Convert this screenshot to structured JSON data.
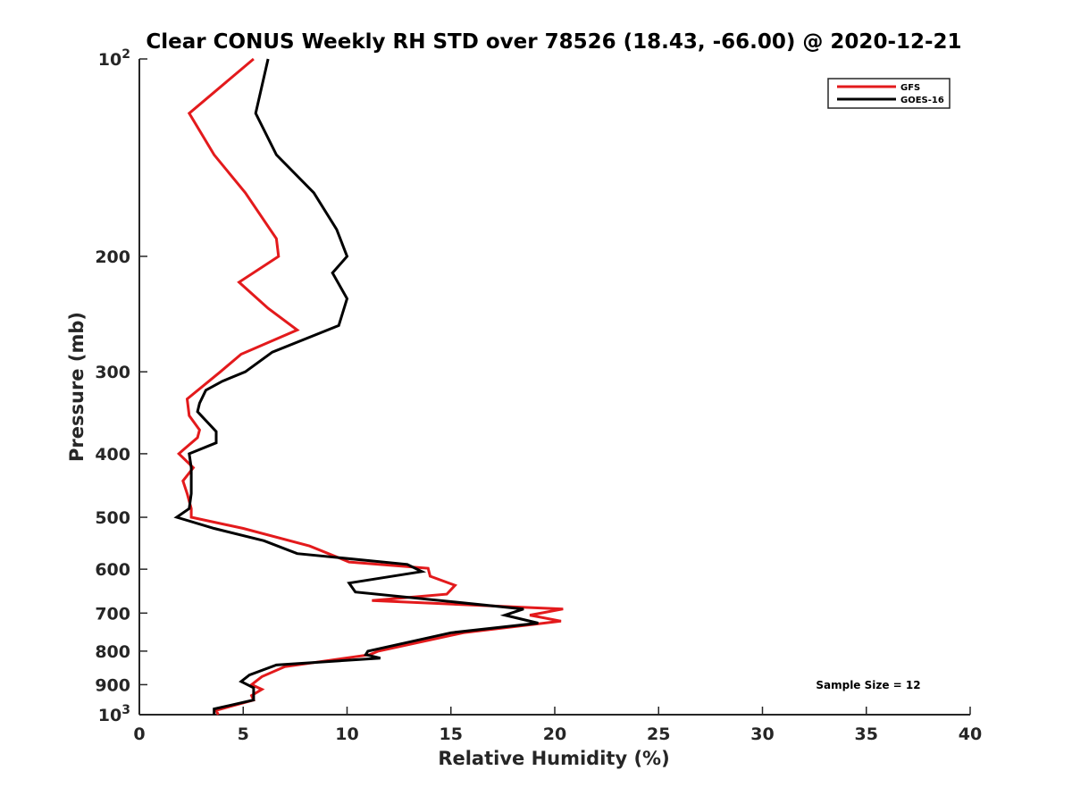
{
  "chart_data": {
    "type": "line",
    "title": "Clear CONUS Weekly RH STD over 78526 (18.43, -66.00) @ 2020-12-21",
    "xlabel": "Relative Humidity (%)",
    "ylabel": "Pressure (mb)",
    "xlim": [
      0,
      40
    ],
    "ylim": [
      100,
      1000
    ],
    "y_scale": "log",
    "y_reversed": true,
    "x_ticks": [
      "0",
      "5",
      "10",
      "15",
      "20",
      "25",
      "30",
      "35",
      "40"
    ],
    "y_ticks": [
      {
        "value": 100,
        "label": "10",
        "sup": "2"
      },
      {
        "value": 200,
        "label": "200"
      },
      {
        "value": 300,
        "label": "300"
      },
      {
        "value": 400,
        "label": "400"
      },
      {
        "value": 500,
        "label": "500"
      },
      {
        "value": 600,
        "label": "600"
      },
      {
        "value": 700,
        "label": "700"
      },
      {
        "value": 800,
        "label": "800"
      },
      {
        "value": 900,
        "label": "900"
      },
      {
        "value": 1000,
        "label": "10",
        "sup": "3"
      }
    ],
    "legend_position": "top-right",
    "grid": false,
    "annotation": "Sample Size = 12",
    "series": [
      {
        "name": "GFS",
        "color": "#e31a1c",
        "x": [
          5.5,
          2.4,
          3.6,
          5.1,
          6.6,
          6.7,
          4.8,
          6.2,
          7.6,
          4.9,
          3.9,
          2.3,
          2.4,
          2.9,
          2.8,
          2.1,
          1.9,
          2.6,
          2.1,
          2.3,
          2.5,
          2.5,
          5.0,
          8.2,
          10.1,
          13.9,
          14.0,
          15.2,
          14.8,
          11.2,
          20.4,
          18.8,
          20.3,
          15.6,
          11.5,
          11.1,
          7.0,
          5.9,
          5.4,
          5.9,
          5.4,
          5.5,
          3.7,
          3.8
        ],
        "y": [
          100,
          121,
          140,
          160,
          188,
          200,
          219,
          240,
          259,
          282,
          300,
          330,
          350,
          368,
          378,
          395,
          400,
          420,
          440,
          460,
          485,
          500,
          520,
          553,
          585,
          598,
          615,
          635,
          655,
          670,
          690,
          705,
          720,
          750,
          800,
          810,
          845,
          875,
          900,
          915,
          935,
          950,
          985,
          1000
        ]
      },
      {
        "name": "GOES-16",
        "color": "#000000",
        "x": [
          6.2,
          5.6,
          6.6,
          8.4,
          9.5,
          10.0,
          9.3,
          10.0,
          9.6,
          6.4,
          5.1,
          4.0,
          3.2,
          2.9,
          2.8,
          3.7,
          3.7,
          2.4,
          2.5,
          2.5,
          2.5,
          2.4,
          1.8,
          3.6,
          6.0,
          7.6,
          12.9,
          13.6,
          10.1,
          10.4,
          18.5,
          17.6,
          19.2,
          15.0,
          11.0,
          10.9,
          11.6,
          6.6,
          5.3,
          4.9,
          5.5,
          5.5,
          3.6,
          3.6
        ],
        "y": [
          100,
          121,
          140,
          160,
          182,
          200,
          212,
          232,
          255,
          280,
          300,
          310,
          320,
          335,
          345,
          370,
          385,
          400,
          420,
          440,
          460,
          485,
          500,
          520,
          543,
          568,
          590,
          605,
          630,
          650,
          690,
          705,
          725,
          750,
          800,
          810,
          820,
          840,
          870,
          890,
          910,
          950,
          980,
          1000
        ]
      }
    ]
  }
}
